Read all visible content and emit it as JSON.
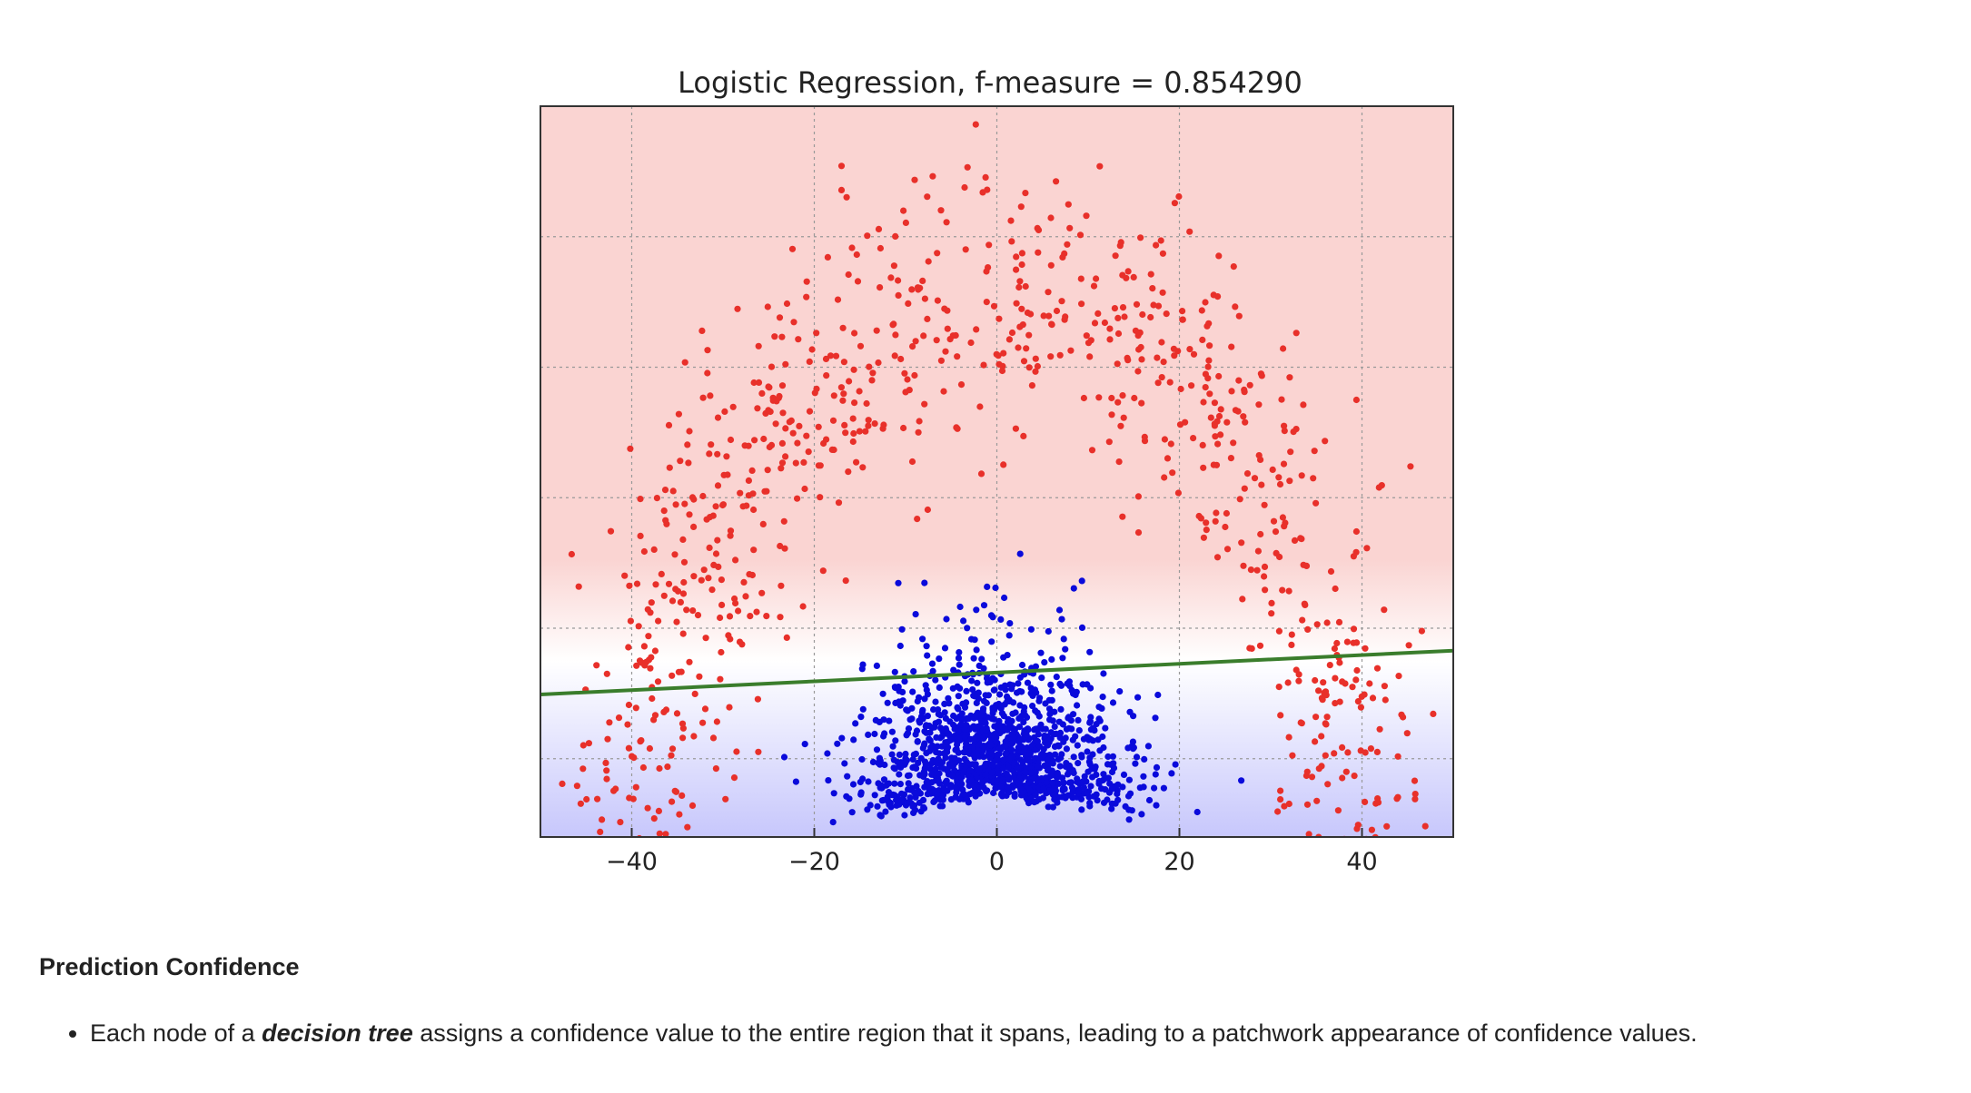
{
  "chart_data": {
    "type": "scatter",
    "title": "Logistic Regression, f-measure = 0.854290",
    "xlabel": "",
    "ylabel": "",
    "xlim": [
      -50,
      50
    ],
    "x_ticks": [
      -40,
      -20,
      0,
      20,
      40
    ],
    "x_tick_labels": [
      "−40",
      "−20",
      "0",
      "20",
      "40"
    ],
    "grid": true,
    "legend": "none",
    "background": "confidence-gradient: red (top) to blue (bottom)",
    "series": [
      {
        "color": "#e8302a",
        "shape": "arc",
        "center_x": 0,
        "radius_x": 40,
        "count": 900,
        "points_sample": [
          [
            -40,
            0.18
          ],
          [
            -35,
            0.42
          ],
          [
            -25,
            0.62
          ],
          [
            -10,
            0.78
          ],
          [
            0,
            0.82
          ],
          [
            10,
            0.78
          ],
          [
            25,
            0.62
          ],
          [
            35,
            0.42
          ],
          [
            40,
            0.18
          ]
        ]
      },
      {
        "color": "#0a0adb",
        "shape": "blob",
        "center_x": 0,
        "spread_x": 7,
        "count": 1300,
        "points_sample": [
          [
            -10,
            0.05
          ],
          [
            -5,
            0.12
          ],
          [
            0,
            0.2
          ],
          [
            5,
            0.12
          ],
          [
            10,
            0.05
          ]
        ]
      }
    ],
    "decision_boundary": {
      "color": "#3a7d2c",
      "x": [
        -50,
        50
      ],
      "y_fraction": [
        0.195,
        0.255
      ]
    }
  },
  "section": {
    "heading": "Prediction Confidence",
    "bullets": [
      {
        "before": "Each node of a ",
        "emphasis": "decision tree",
        "after": " assigns a confidence value to the entire region that it spans, leading to a patchwork appearance of confidence values."
      }
    ]
  }
}
